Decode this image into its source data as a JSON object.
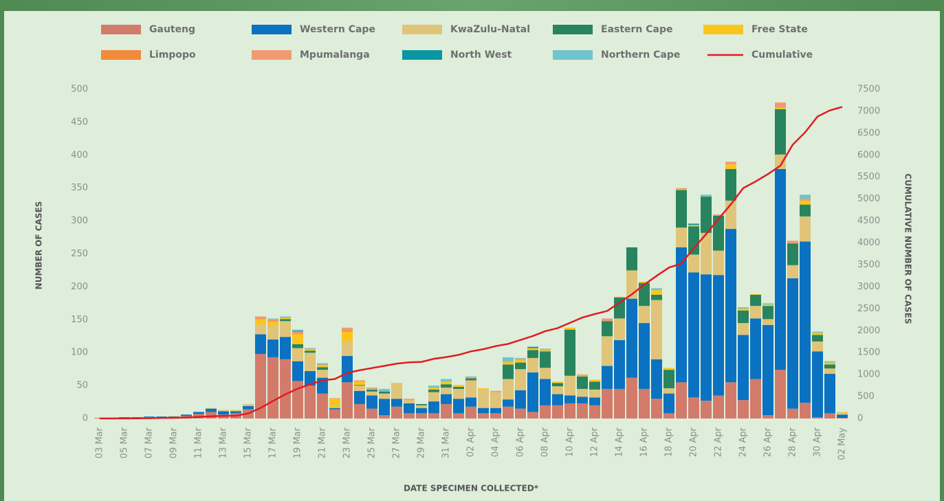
{
  "chart_data": {
    "type": "bar",
    "stacked": true,
    "xlabel": "DATE SPECIMEN COLLECTED*",
    "ylabel": "NUMBER OF CASES",
    "y2label": "CUMULATIVE NUMBER OF CASES",
    "categories": [
      "03 Mar",
      null,
      "05 Mar",
      null,
      "07 Mar",
      null,
      "09 Mar",
      null,
      "11 Mar",
      null,
      "13 Mar",
      null,
      "15 Mar",
      null,
      "17 Mar",
      null,
      "19 Mar",
      null,
      "21 Mar",
      null,
      "23 Mar",
      null,
      "25 Mar",
      null,
      "27 Mar",
      null,
      "29 Mar",
      null,
      "31 Mar",
      null,
      "02 Apr",
      null,
      "04 Apr",
      null,
      "06 Apr",
      null,
      "08 Apr",
      null,
      "10 Apr",
      null,
      "12 Apr",
      null,
      "14 Apr",
      null,
      "16 Apr",
      null,
      "18 Apr",
      null,
      "20 Apr",
      null,
      "22 Apr",
      null,
      "24 Apr",
      null,
      "26 Apr",
      null,
      "28 Apr",
      null,
      "30 Apr",
      null,
      "02 May"
    ],
    "ylim": [
      0,
      500
    ],
    "yticks": [
      0,
      50,
      100,
      150,
      200,
      250,
      300,
      350,
      400,
      450,
      500
    ],
    "y2lim": [
      0,
      7500
    ],
    "y2ticks": [
      0,
      500,
      1000,
      1500,
      2000,
      2500,
      3000,
      3500,
      4000,
      4500,
      5000,
      5500,
      6000,
      6500,
      7000,
      7500
    ],
    "series": [
      {
        "name": "Gauteng",
        "color": "#d27b6a",
        "values": [
          1,
          0,
          1,
          1,
          2,
          2,
          2,
          4,
          7,
          10,
          6,
          8,
          14,
          98,
          93,
          90,
          57,
          50,
          38,
          14,
          55,
          22,
          15,
          5,
          18,
          8,
          8,
          8,
          22,
          8,
          18,
          8,
          8,
          18,
          15,
          10,
          20,
          20,
          23,
          23,
          20,
          45,
          45,
          62,
          45,
          30,
          8,
          55,
          32,
          27,
          35,
          55,
          28,
          60,
          5,
          74,
          15,
          24,
          2,
          8,
          1
        ]
      },
      {
        "name": "Western Cape",
        "color": "#0a72c1",
        "values": [
          0,
          0,
          1,
          1,
          1,
          1,
          1,
          2,
          3,
          5,
          5,
          3,
          5,
          30,
          27,
          34,
          30,
          22,
          24,
          2,
          40,
          20,
          20,
          25,
          12,
          15,
          8,
          18,
          15,
          22,
          14,
          8,
          8,
          11,
          28,
          60,
          40,
          17,
          12,
          10,
          12,
          35,
          74,
          120,
          100,
          60,
          30,
          205,
          190,
          192,
          183,
          233,
          99,
          92,
          137,
          305,
          198,
          245,
          100,
          60,
          5
        ]
      },
      {
        "name": "KwaZulu-Natal",
        "color": "#e0c47a",
        "values": [
          0,
          0,
          0,
          0,
          0,
          0,
          1,
          0,
          0,
          1,
          2,
          2,
          3,
          15,
          22,
          24,
          20,
          28,
          12,
          2,
          22,
          8,
          6,
          8,
          22,
          5,
          4,
          14,
          10,
          15,
          26,
          28,
          24,
          31,
          32,
          22,
          17,
          12,
          30,
          12,
          12,
          45,
          33,
          43,
          26,
          90,
          8,
          30,
          27,
          63,
          37,
          43,
          18,
          19,
          9,
          22,
          20,
          38,
          15,
          8,
          3
        ]
      },
      {
        "name": "Eastern Cape",
        "color": "#27845e",
        "values": [
          0,
          0,
          0,
          0,
          0,
          0,
          0,
          0,
          0,
          0,
          0,
          0,
          0,
          0,
          0,
          3,
          6,
          3,
          4,
          0,
          0,
          1,
          3,
          3,
          0,
          0,
          2,
          4,
          5,
          3,
          3,
          0,
          0,
          22,
          10,
          12,
          25,
          5,
          70,
          19,
          12,
          23,
          32,
          35,
          35,
          8,
          28,
          57,
          43,
          55,
          53,
          48,
          19,
          17,
          20,
          69,
          33,
          18,
          10,
          6,
          0
        ]
      },
      {
        "name": "Free State",
        "color": "#fbc61b",
        "values": [
          0,
          0,
          0,
          0,
          0,
          0,
          0,
          0,
          0,
          0,
          0,
          0,
          0,
          8,
          5,
          2,
          15,
          2,
          3,
          12,
          15,
          5,
          1,
          0,
          2,
          0,
          0,
          3,
          4,
          3,
          0,
          2,
          0,
          4,
          4,
          3,
          2,
          2,
          3,
          1,
          3,
          0,
          1,
          0,
          2,
          7,
          3,
          1,
          2,
          0,
          0,
          7,
          3,
          1,
          2,
          2,
          0,
          6,
          3,
          3,
          1
        ]
      },
      {
        "name": "Limpopo",
        "color": "#f08a3c",
        "values": [
          0,
          0,
          0,
          0,
          0,
          0,
          0,
          0,
          0,
          0,
          0,
          0,
          0,
          1,
          1,
          0,
          1,
          0,
          0,
          0,
          2,
          0,
          0,
          0,
          0,
          0,
          0,
          0,
          0,
          0,
          0,
          0,
          0,
          0,
          0,
          0,
          0,
          0,
          0,
          0,
          0,
          0,
          0,
          0,
          0,
          0,
          0,
          0,
          0,
          0,
          0,
          0,
          0,
          0,
          0,
          0,
          0,
          0,
          0,
          0,
          0
        ]
      },
      {
        "name": "Mpumalanga",
        "color": "#f19a72",
        "values": [
          0,
          0,
          0,
          0,
          0,
          0,
          0,
          0,
          0,
          0,
          0,
          0,
          0,
          3,
          3,
          0,
          3,
          1,
          1,
          1,
          4,
          2,
          1,
          0,
          0,
          2,
          0,
          0,
          0,
          0,
          2,
          0,
          2,
          0,
          2,
          0,
          0,
          0,
          0,
          2,
          0,
          4,
          0,
          0,
          0,
          0,
          0,
          2,
          0,
          0,
          2,
          4,
          0,
          0,
          0,
          8,
          4,
          3,
          0,
          0,
          0
        ]
      },
      {
        "name": "North West",
        "color": "#0a96a3",
        "values": [
          0,
          0,
          0,
          0,
          0,
          0,
          0,
          0,
          0,
          0,
          0,
          0,
          0,
          0,
          0,
          0,
          1,
          0,
          0,
          0,
          0,
          0,
          0,
          0,
          0,
          0,
          0,
          0,
          0,
          0,
          0,
          0,
          0,
          0,
          0,
          2,
          0,
          0,
          0,
          0,
          0,
          0,
          0,
          0,
          0,
          0,
          0,
          0,
          2,
          0,
          0,
          0,
          0,
          0,
          0,
          0,
          0,
          0,
          0,
          0,
          0
        ]
      },
      {
        "name": "Northern Cape",
        "color": "#72c4cc",
        "values": [
          0,
          0,
          0,
          0,
          0,
          0,
          0,
          0,
          0,
          0,
          0,
          0,
          0,
          0,
          1,
          2,
          2,
          1,
          2,
          0,
          0,
          0,
          1,
          4,
          0,
          0,
          0,
          3,
          4,
          0,
          1,
          0,
          0,
          7,
          1,
          0,
          2,
          0,
          0,
          0,
          0,
          0,
          0,
          0,
          0,
          3,
          0,
          0,
          0,
          3,
          0,
          0,
          2,
          0,
          2,
          0,
          0,
          6,
          2,
          2,
          0
        ]
      },
      {
        "name": "Cumulative",
        "color": "#e11b22",
        "type": "line",
        "axis": "y2",
        "values": [
          1,
          1,
          2,
          4,
          7,
          13,
          16,
          24,
          38,
          51,
          61,
          62,
          116,
          240,
          400,
          550,
          680,
          780,
          870,
          900,
          1040,
          1100,
          1150,
          1200,
          1250,
          1280,
          1290,
          1360,
          1400,
          1450,
          1530,
          1580,
          1650,
          1700,
          1790,
          1880,
          1990,
          2060,
          2180,
          2300,
          2380,
          2450,
          2640,
          2830,
          3050,
          3250,
          3440,
          3530,
          3880,
          4200,
          4550,
          4880,
          5250,
          5400,
          5570,
          5760,
          6240,
          6520,
          6880,
          7020,
          7100
        ]
      }
    ]
  }
}
